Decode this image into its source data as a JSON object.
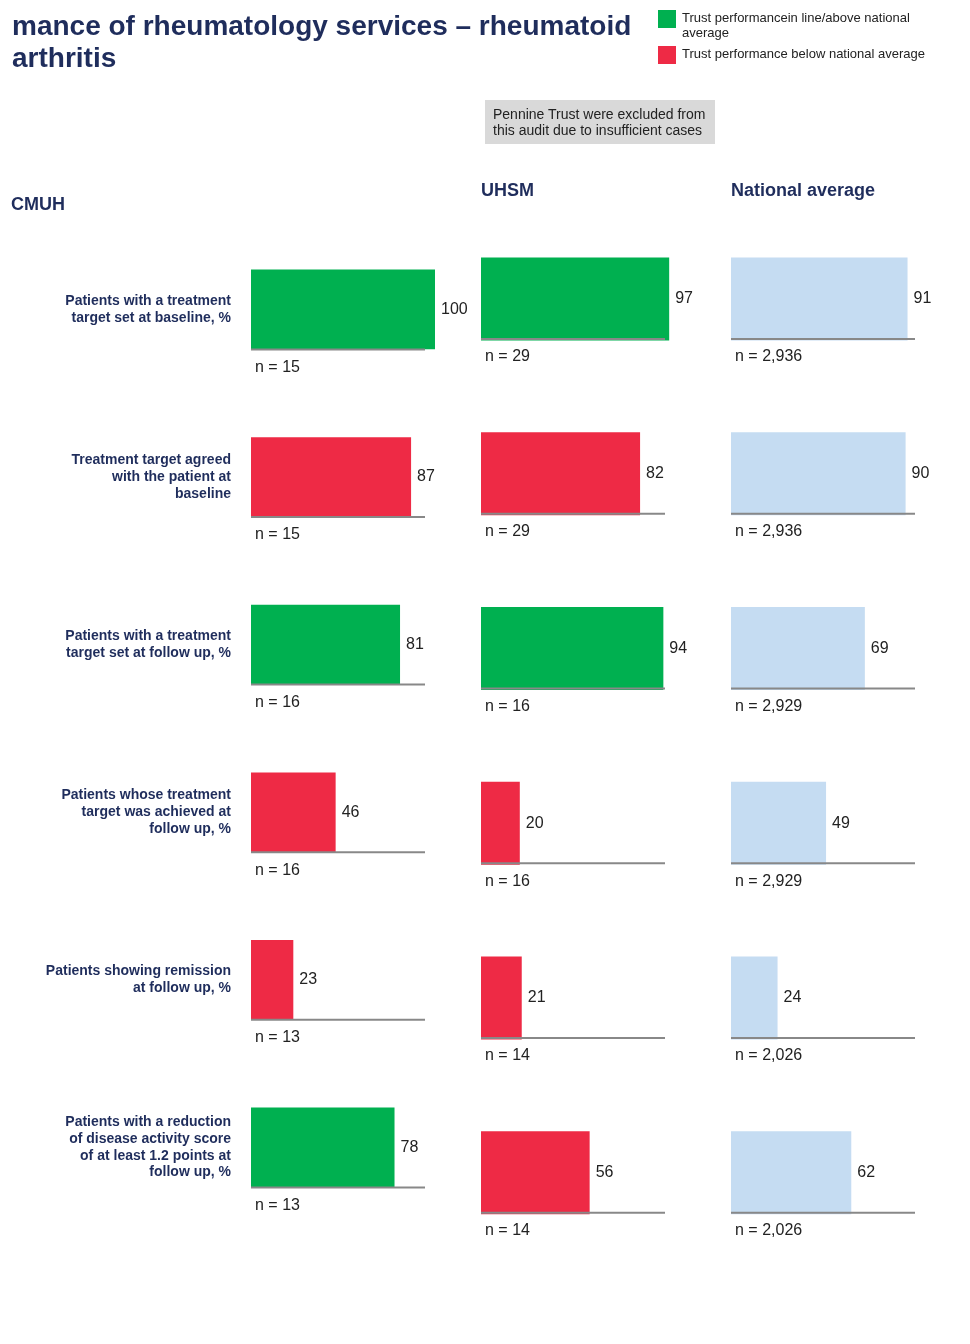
{
  "chart_data": [
    {
      "type": "bar",
      "orientation": "horizontal",
      "stacked": true,
      "title": "CMUH",
      "legend": "top right",
      "tick_labels": "y",
      "data_labels": true,
      "categories": [
        "Patients with a treatment target set at baseline, %",
        "Treatment target agreed with the patient at baseline",
        "Patients with a treatment target set at follow up, %",
        "Patients whose treatment target was achieved at follow up, %",
        "Patients showing remission at follow up, %",
        "Patients with a reduction of disease activity score of at least 1.2 points at follow up, %"
      ],
      "series": [
        {
          "name": "Trust performancein line/above national average",
          "color": "#00b050",
          "values": [
            100,
            null,
            81,
            null,
            null,
            78
          ]
        },
        {
          "name": "Trust performance below national average",
          "color": "#ee2a45",
          "values": [
            null,
            87,
            null,
            46,
            23,
            null
          ]
        }
      ],
      "annotations": [
        "mance of rheumatology services – rheumatoid arthritis",
        "n = 15",
        "n = 15",
        "n = 16",
        "n = 16",
        "n = 13",
        "n = 13"
      ]
    },
    {
      "type": "bar",
      "orientation": "horizontal",
      "stacked": true,
      "title": "UHSM",
      "tick_labels": false,
      "data_labels": true,
      "categories": [
        null,
        null,
        null,
        null,
        null,
        null
      ],
      "series": [
        {
          "name": "Trust performancein line/above national average",
          "color": "#00b050",
          "values": [
            97,
            null,
            94,
            null,
            null,
            null
          ]
        },
        {
          "name": "Trust performance below national average",
          "color": "#ee2a45",
          "values": [
            null,
            82,
            null,
            20,
            21,
            56
          ]
        }
      ],
      "annotations": [
        "Pennine Trust were excluded from this audit due to insufficient cases",
        "n = 29",
        "n = 29",
        "n = 16",
        "n = 16",
        "n = 14",
        "n = 14"
      ]
    },
    {
      "type": "bar",
      "orientation": "horizontal",
      "title": "National average",
      "tick_labels": false,
      "data_labels": true,
      "categories": [
        null,
        null,
        null,
        null,
        null,
        null
      ],
      "series": [
        {
          "color": "#c5dcf2",
          "values": [
            91,
            90,
            69,
            49,
            24,
            62
          ]
        }
      ],
      "annotations": [
        "n = 2,936",
        "n = 2,936",
        "n = 2,929",
        "n = 2,929",
        "n = 2,026",
        "n = 2,026"
      ]
    }
  ]
}
